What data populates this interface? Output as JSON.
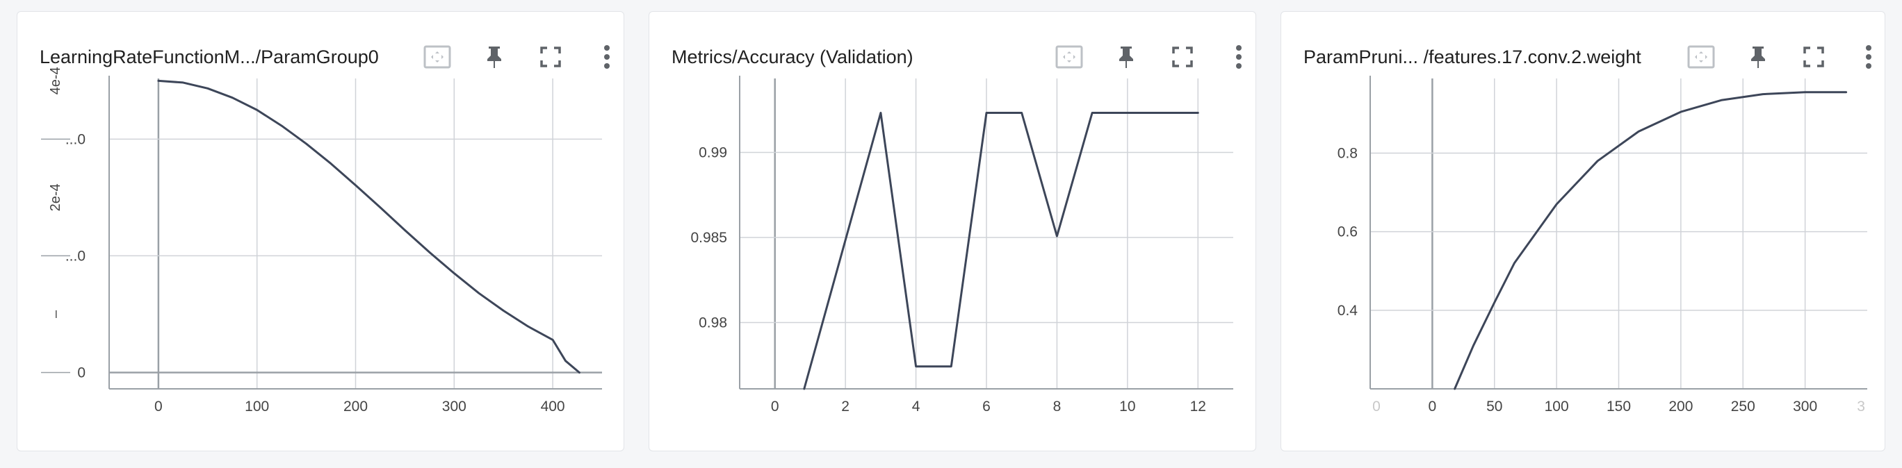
{
  "colors": {
    "line": "#3d4659",
    "grid": "#d0d3d8",
    "axis": "#9aa0a6",
    "zero": "#9aa0a6",
    "tick": "#444444",
    "tick_faded": "#c8c8c8",
    "icon": "#5f6368",
    "icon_box": "#bdc1c6"
  },
  "toolbar": {
    "icons": [
      "fit-domain-icon",
      "pin-icon",
      "fullscreen-icon",
      "more-vert-icon"
    ]
  },
  "cards": [
    {
      "title": "LearningRateFunctionM.../ParamGroup0",
      "chart_data": {
        "type": "line",
        "title": "LearningRateFunctionM.../ParamGroup0",
        "xlim": [
          -50,
          450
        ],
        "ylim": [
          -2.8e-05,
          0.000504
        ],
        "x_ticks": [
          "0",
          "100",
          "200",
          "300",
          "400"
        ],
        "x_tick_values": [
          0,
          100,
          200,
          300,
          400
        ],
        "y_ticks": [
          "0",
          "...0",
          "...0"
        ],
        "y_tick_values": [
          0,
          0.0002,
          0.0004
        ],
        "y_side_labels": [
          "4e-4",
          "2e-4",
          "–"
        ],
        "y_side_values": [
          0.0005,
          0.0003,
          0.0001
        ],
        "grid": true,
        "series": [
          {
            "x": [
              0,
              25,
              50,
              75,
              100,
              125,
              150,
              175,
              200,
              225,
              250,
              275,
              300,
              325,
              350,
              375,
              400,
              413,
              427
            ],
            "y": [
              0.0005,
              0.000497,
              0.000487,
              0.000471,
              0.00045,
              0.000423,
              0.000392,
              0.000358,
              0.000321,
              0.000283,
              0.000244,
              0.000206,
              0.00017,
              0.000136,
              0.000106,
              7.9e-05,
              5.6e-05,
              2e-05,
              0.0
            ]
          }
        ]
      }
    },
    {
      "title": "Metrics/Accuracy (Validation)",
      "chart_data": {
        "type": "line",
        "title": "Metrics/Accuracy (Validation)",
        "xlim": [
          -1,
          13
        ],
        "ylim": [
          0.9761,
          0.99435
        ],
        "x_ticks": [
          "0",
          "2",
          "4",
          "6",
          "8",
          "10",
          "12"
        ],
        "x_tick_values": [
          0,
          2,
          4,
          6,
          8,
          10,
          12
        ],
        "x_faded_ticks": [],
        "y_ticks": [
          "0.98",
          "0.985",
          "0.99"
        ],
        "y_tick_values": [
          0.98,
          0.985,
          0.99
        ],
        "grid": true,
        "series": [
          {
            "x": [
              0.83,
              3,
              4,
              5,
              6,
              7,
              8,
              9,
              12
            ],
            "y": [
              0.9761,
              0.99233,
              0.97742,
              0.97742,
              0.99233,
              0.99233,
              0.98508,
              0.99233,
              0.99233
            ]
          }
        ]
      }
    },
    {
      "title": "ParamPruni... /features.17.conv.2.weight",
      "chart_data": {
        "type": "line",
        "title": "ParamPruni... /features.17.conv.2.weight",
        "xlim": [
          -50,
          350
        ],
        "ylim": [
          0.2,
          0.99
        ],
        "x_ticks": [
          "0",
          "50",
          "100",
          "150",
          "200",
          "250",
          "300"
        ],
        "x_tick_values": [
          0,
          50,
          100,
          150,
          200,
          250,
          300
        ],
        "x_faded_ticks": [
          "0",
          "3"
        ],
        "x_faded_values": [
          -45,
          345
        ],
        "y_ticks": [
          "0.4",
          "0.6",
          "0.8"
        ],
        "y_tick_values": [
          0.4,
          0.6,
          0.8
        ],
        "grid": true,
        "series": [
          {
            "x": [
              18,
              33,
              50,
              66,
              100,
              133,
              166,
              200,
              233,
              266,
              300,
              333
            ],
            "y": [
              0.2,
              0.31,
              0.42,
              0.52,
              0.67,
              0.78,
              0.855,
              0.905,
              0.935,
              0.95,
              0.955,
              0.955
            ]
          }
        ]
      }
    }
  ]
}
